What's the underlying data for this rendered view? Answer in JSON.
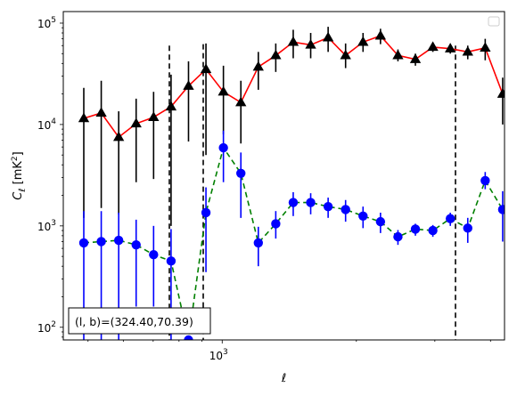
{
  "chart_data": {
    "type": "scatter",
    "title": "",
    "xlabel": "ℓ",
    "ylabel": "C_ℓ  [mK²]",
    "xscale": "log",
    "yscale": "log",
    "xlim": [
      440,
      4300
    ],
    "ylim": [
      75,
      130000
    ],
    "x_ticks": [
      {
        "value": 1000,
        "base": "10",
        "exp": "3"
      }
    ],
    "y_ticks": [
      {
        "value": 100,
        "base": "10",
        "exp": "2"
      },
      {
        "value": 1000,
        "base": "10",
        "exp": "3"
      },
      {
        "value": 10000,
        "base": "10",
        "exp": "4"
      },
      {
        "value": 100000,
        "base": "10",
        "exp": "5"
      }
    ],
    "grid": false,
    "legend": "top-right (empty)",
    "annotation": {
      "text": "(l, b)=(324.40,70.39)",
      "position": "bottom-left"
    },
    "vlines": [
      {
        "x": 622,
        "ymin": 75,
        "ymax": 60000
      },
      {
        "x": 715,
        "ymin": 75,
        "ymax": 62000
      },
      {
        "x": 3620,
        "ymin": 75,
        "ymax": 60000
      }
    ],
    "series": [
      {
        "marker": "triangle",
        "color": "#000000",
        "line_color": "#ff0000",
        "line_style": "solid",
        "points": [
          {
            "x": 487,
            "y": 11500,
            "lo": 1200,
            "hi": 23000
          },
          {
            "x": 516,
            "y": 13000,
            "lo": 1500,
            "hi": 27000
          },
          {
            "x": 546,
            "y": 7500,
            "lo": 1300,
            "hi": 13500
          },
          {
            "x": 580,
            "y": 10200,
            "lo": 2700,
            "hi": 18000
          },
          {
            "x": 614,
            "y": 11800,
            "lo": 2900,
            "hi": 21000
          },
          {
            "x": 651,
            "y": 15000,
            "lo": 1000,
            "hi": 31000
          },
          {
            "x": 690,
            "y": 24000,
            "lo": 6800,
            "hi": 42000
          },
          {
            "x": 733,
            "y": 35000,
            "lo": 5000,
            "hi": 63000
          },
          {
            "x": 776,
            "y": 21000,
            "lo": 8000,
            "hi": 38000
          },
          {
            "x": 823,
            "y": 16500,
            "lo": 6500,
            "hi": 27000
          },
          {
            "x": 873,
            "y": 37000,
            "lo": 22000,
            "hi": 52000
          },
          {
            "x": 925,
            "y": 48000,
            "lo": 33000,
            "hi": 63000
          },
          {
            "x": 981,
            "y": 65000,
            "lo": 45000,
            "hi": 86000
          },
          {
            "x": 1040,
            "y": 61000,
            "lo": 45000,
            "hi": 80000
          },
          {
            "x": 1102,
            "y": 72000,
            "lo": 52000,
            "hi": 92000
          },
          {
            "x": 1169,
            "y": 48000,
            "lo": 36000,
            "hi": 63000
          },
          {
            "x": 1238,
            "y": 65000,
            "lo": 52000,
            "hi": 80000
          },
          {
            "x": 1313,
            "y": 75000,
            "lo": 62000,
            "hi": 88000
          },
          {
            "x": 1392,
            "y": 48000,
            "lo": 42000,
            "hi": 55000
          },
          {
            "x": 1476,
            "y": 44000,
            "lo": 38000,
            "hi": 50000
          },
          {
            "x": 1565,
            "y": 58000,
            "lo": 52000,
            "hi": 64000
          },
          {
            "x": 1660,
            "y": 56000,
            "lo": 50000,
            "hi": 62000
          },
          {
            "x": 1760,
            "y": 52000,
            "lo": 44000,
            "hi": 60000
          },
          {
            "x": 1866,
            "y": 57000,
            "lo": 43000,
            "hi": 70000
          },
          {
            "x": 1977,
            "y": 20000,
            "lo": 10000,
            "hi": 29000
          }
        ]
      },
      {
        "marker": "circle",
        "color": "#0000ff",
        "line_color": "#008000",
        "line_style": "dashed",
        "points": [
          {
            "x": 487,
            "y": 680,
            "lo": 75,
            "hi": 1400
          },
          {
            "x": 516,
            "y": 700,
            "lo": 75,
            "hi": 1400
          },
          {
            "x": 546,
            "y": 720,
            "lo": 75,
            "hi": 1350
          },
          {
            "x": 580,
            "y": 650,
            "lo": 160,
            "hi": 1150
          },
          {
            "x": 614,
            "y": 520,
            "lo": 160,
            "hi": 1000
          },
          {
            "x": 651,
            "y": 450,
            "lo": 75,
            "hi": 930
          },
          {
            "x": 690,
            "y": 75,
            "lo": 75,
            "hi": 75
          },
          {
            "x": 733,
            "y": 1350,
            "lo": 350,
            "hi": 2400
          },
          {
            "x": 776,
            "y": 5900,
            "lo": 2700,
            "hi": 8700
          },
          {
            "x": 823,
            "y": 3300,
            "lo": 1200,
            "hi": 5300
          },
          {
            "x": 873,
            "y": 680,
            "lo": 400,
            "hi": 980
          },
          {
            "x": 925,
            "y": 1050,
            "lo": 750,
            "hi": 1400
          },
          {
            "x": 981,
            "y": 1700,
            "lo": 1250,
            "hi": 2150
          },
          {
            "x": 1040,
            "y": 1700,
            "lo": 1300,
            "hi": 2100
          },
          {
            "x": 1102,
            "y": 1550,
            "lo": 1200,
            "hi": 1900
          },
          {
            "x": 1169,
            "y": 1450,
            "lo": 1100,
            "hi": 1800
          },
          {
            "x": 1238,
            "y": 1250,
            "lo": 950,
            "hi": 1550
          },
          {
            "x": 1313,
            "y": 1100,
            "lo": 850,
            "hi": 1350
          },
          {
            "x": 1392,
            "y": 780,
            "lo": 650,
            "hi": 910
          },
          {
            "x": 1476,
            "y": 930,
            "lo": 800,
            "hi": 1050
          },
          {
            "x": 1565,
            "y": 900,
            "lo": 780,
            "hi": 1020
          },
          {
            "x": 1660,
            "y": 1180,
            "lo": 1000,
            "hi": 1350
          },
          {
            "x": 1760,
            "y": 950,
            "lo": 680,
            "hi": 1200
          },
          {
            "x": 1866,
            "y": 2800,
            "lo": 2300,
            "hi": 3400
          },
          {
            "x": 1977,
            "y": 1450,
            "lo": 700,
            "hi": 2200
          }
        ]
      }
    ]
  }
}
